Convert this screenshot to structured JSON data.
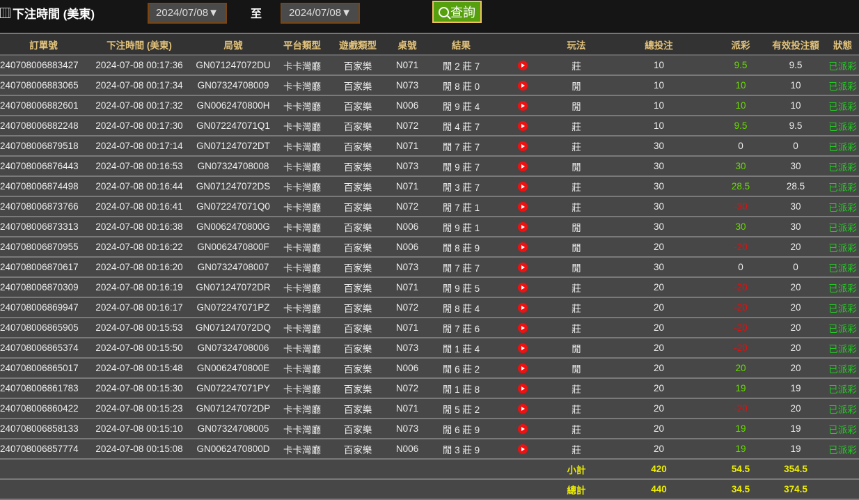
{
  "filter": {
    "label": "下注時間 (美東)",
    "date_from": "2024/07/08▼",
    "to": "至",
    "date_to": "2024/07/08▼",
    "query_label": "查詢"
  },
  "columns": [
    "訂單號",
    "下注時間 (美東)",
    "局號",
    "平台類型",
    "遊戲類型",
    "桌號",
    "結果",
    "",
    "玩法",
    "總投注",
    "派彩",
    "有效投注額",
    "狀態"
  ],
  "rows": [
    [
      "240708006883427",
      "2024-07-08 00:17:36",
      "GN071247072DU",
      "卡卡灣廳",
      "百家樂",
      "N071",
      "閒 2 莊 7",
      "莊",
      "10",
      "9.5",
      "9.5",
      "已派彩"
    ],
    [
      "240708006883065",
      "2024-07-08 00:17:34",
      "GN07324708009",
      "卡卡灣廳",
      "百家樂",
      "N073",
      "閒 8 莊 0",
      "閒",
      "10",
      "10",
      "10",
      "已派彩"
    ],
    [
      "240708006882601",
      "2024-07-08 00:17:32",
      "GN0062470800H",
      "卡卡灣廳",
      "百家樂",
      "N006",
      "閒 9 莊 4",
      "閒",
      "10",
      "10",
      "10",
      "已派彩"
    ],
    [
      "240708006882248",
      "2024-07-08 00:17:30",
      "GN072247071Q1",
      "卡卡灣廳",
      "百家樂",
      "N072",
      "閒 4 莊 7",
      "莊",
      "10",
      "9.5",
      "9.5",
      "已派彩"
    ],
    [
      "240708006879518",
      "2024-07-08 00:17:14",
      "GN071247072DT",
      "卡卡灣廳",
      "百家樂",
      "N071",
      "閒 7 莊 7",
      "莊",
      "30",
      "0",
      "0",
      "已派彩"
    ],
    [
      "240708006876443",
      "2024-07-08 00:16:53",
      "GN07324708008",
      "卡卡灣廳",
      "百家樂",
      "N073",
      "閒 9 莊 7",
      "閒",
      "30",
      "30",
      "30",
      "已派彩"
    ],
    [
      "240708006874498",
      "2024-07-08 00:16:44",
      "GN071247072DS",
      "卡卡灣廳",
      "百家樂",
      "N071",
      "閒 3 莊 7",
      "莊",
      "30",
      "28.5",
      "28.5",
      "已派彩"
    ],
    [
      "240708006873766",
      "2024-07-08 00:16:41",
      "GN072247071Q0",
      "卡卡灣廳",
      "百家樂",
      "N072",
      "閒 7 莊 1",
      "莊",
      "30",
      "-30",
      "30",
      "已派彩"
    ],
    [
      "240708006873313",
      "2024-07-08 00:16:38",
      "GN0062470800G",
      "卡卡灣廳",
      "百家樂",
      "N006",
      "閒 9 莊 1",
      "閒",
      "30",
      "30",
      "30",
      "已派彩"
    ],
    [
      "240708006870955",
      "2024-07-08 00:16:22",
      "GN0062470800F",
      "卡卡灣廳",
      "百家樂",
      "N006",
      "閒 8 莊 9",
      "閒",
      "20",
      "-20",
      "20",
      "已派彩"
    ],
    [
      "240708006870617",
      "2024-07-08 00:16:20",
      "GN07324708007",
      "卡卡灣廳",
      "百家樂",
      "N073",
      "閒 7 莊 7",
      "閒",
      "30",
      "0",
      "0",
      "已派彩"
    ],
    [
      "240708006870309",
      "2024-07-08 00:16:19",
      "GN071247072DR",
      "卡卡灣廳",
      "百家樂",
      "N071",
      "閒 9 莊 5",
      "莊",
      "20",
      "-20",
      "20",
      "已派彩"
    ],
    [
      "240708006869947",
      "2024-07-08 00:16:17",
      "GN072247071PZ",
      "卡卡灣廳",
      "百家樂",
      "N072",
      "閒 8 莊 4",
      "莊",
      "20",
      "-20",
      "20",
      "已派彩"
    ],
    [
      "240708006865905",
      "2024-07-08 00:15:53",
      "GN071247072DQ",
      "卡卡灣廳",
      "百家樂",
      "N071",
      "閒 7 莊 6",
      "莊",
      "20",
      "-20",
      "20",
      "已派彩"
    ],
    [
      "240708006865374",
      "2024-07-08 00:15:50",
      "GN07324708006",
      "卡卡灣廳",
      "百家樂",
      "N073",
      "閒 1 莊 4",
      "閒",
      "20",
      "-20",
      "20",
      "已派彩"
    ],
    [
      "240708006865017",
      "2024-07-08 00:15:48",
      "GN0062470800E",
      "卡卡灣廳",
      "百家樂",
      "N006",
      "閒 6 莊 2",
      "閒",
      "20",
      "20",
      "20",
      "已派彩"
    ],
    [
      "240708006861783",
      "2024-07-08 00:15:30",
      "GN072247071PY",
      "卡卡灣廳",
      "百家樂",
      "N072",
      "閒 1 莊 8",
      "莊",
      "20",
      "19",
      "19",
      "已派彩"
    ],
    [
      "240708006860422",
      "2024-07-08 00:15:23",
      "GN071247072DP",
      "卡卡灣廳",
      "百家樂",
      "N071",
      "閒 5 莊 2",
      "莊",
      "20",
      "-20",
      "20",
      "已派彩"
    ],
    [
      "240708006858133",
      "2024-07-08 00:15:10",
      "GN07324708005",
      "卡卡灣廳",
      "百家樂",
      "N073",
      "閒 6 莊 9",
      "莊",
      "20",
      "19",
      "19",
      "已派彩"
    ],
    [
      "240708006857774",
      "2024-07-08 00:15:08",
      "GN0062470800D",
      "卡卡灣廳",
      "百家樂",
      "N006",
      "閒 3 莊 9",
      "莊",
      "20",
      "19",
      "19",
      "已派彩"
    ]
  ],
  "subtotal": {
    "label": "小計",
    "total_bet": "420",
    "payout": "54.5",
    "valid_bet": "354.5"
  },
  "total": {
    "label": "總計",
    "total_bet": "440",
    "payout": "34.5",
    "valid_bet": "374.5"
  },
  "colors": {
    "header_text": "#e2c27a",
    "payout_positive": "#66dd00",
    "payout_negative": "#dd1111",
    "status": "#22cc22",
    "summary": "#eeee00",
    "query_button": "#56a00e"
  },
  "icons": {
    "filter": "calendar-icon",
    "query": "search-icon",
    "video": "play-video-icon"
  }
}
